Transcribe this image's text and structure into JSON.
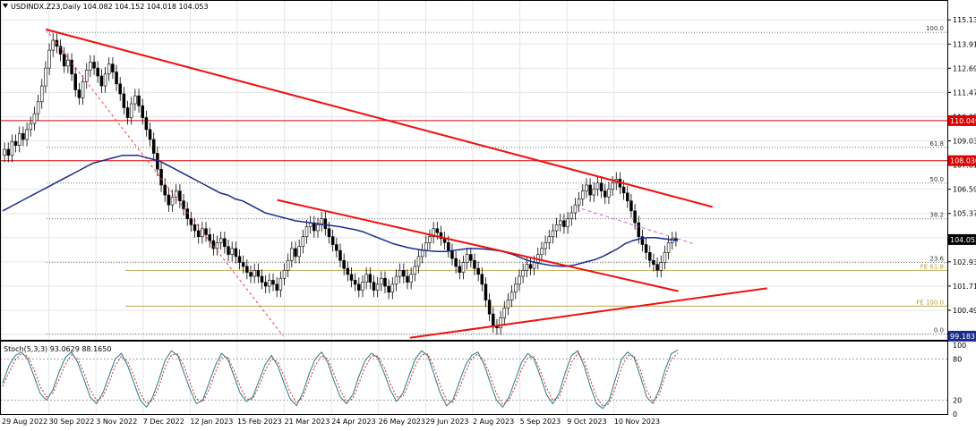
{
  "header": {
    "symbol_text": "USDINDX.Z23,Daily  104.082 104.152 104.018 104.053"
  },
  "chart_data": [
    {
      "type": "line",
      "name": "price",
      "y_ticks": [
        "115.130",
        "113.910",
        "112.690",
        "111.470",
        "110.250",
        "109.030",
        "107.810",
        "106.590",
        "105.370",
        "104.150",
        "102.930",
        "101.710",
        "100.490",
        "99.270"
      ],
      "y_tick_values": [
        115.13,
        113.91,
        112.69,
        111.47,
        110.25,
        109.03,
        107.81,
        106.59,
        105.37,
        104.15,
        102.93,
        101.71,
        100.49,
        99.27
      ],
      "ylim": [
        99.0,
        115.5
      ],
      "x_labels": [
        "29 Aug 2022",
        "30 Sep 2022",
        "3 Nov 2022",
        "7 Dec 2022",
        "12 Jan 2023",
        "15 Feb 2023",
        "21 Mar 2023",
        "24 Apr 2023",
        "26 May 2023",
        "29 Jun 2023",
        "2 Aug 2023",
        "5 Sep 2023",
        "9 Oct 2023",
        "10 Nov 2023"
      ],
      "price_badges": [
        {
          "text": "110.049",
          "value": 110.049,
          "color": "#dd0000"
        },
        {
          "text": "108.030",
          "value": 108.03,
          "color": "#dd0000"
        },
        {
          "text": "104.053",
          "value": 104.053,
          "color": "#000000"
        },
        {
          "text": "99.183",
          "value": 99.183,
          "color": "#1a2c8c"
        }
      ],
      "fib_levels": [
        {
          "label": "100.0",
          "value": 114.5
        },
        {
          "label": "61.8",
          "value": 108.7
        },
        {
          "label": "50.0",
          "value": 106.9
        },
        {
          "label": "38.2",
          "value": 105.1
        },
        {
          "label": "23.6",
          "value": 102.9
        },
        {
          "label": "0.0",
          "value": 99.3
        }
      ],
      "fe_levels": [
        {
          "label": "FE 61.8",
          "value": 102.5
        },
        {
          "label": "FE 100.0",
          "value": 100.7
        }
      ],
      "horizontal_lines": [
        {
          "value": 110.049,
          "color": "#dd0000"
        },
        {
          "value": 108.03,
          "color": "#dd0000"
        }
      ],
      "closes": [
        108.6,
        108.3,
        109.0,
        108.8,
        109.4,
        109.1,
        109.6,
        109.9,
        110.4,
        111.0,
        111.8,
        112.7,
        113.6,
        114.1,
        113.8,
        113.4,
        112.8,
        113.1,
        112.4,
        111.6,
        111.2,
        112.0,
        112.6,
        113.0,
        112.7,
        112.3,
        111.8,
        112.4,
        112.9,
        112.5,
        111.9,
        111.4,
        110.7,
        110.2,
        110.9,
        111.3,
        110.8,
        110.2,
        109.6,
        109.1,
        108.4,
        107.6,
        106.8,
        106.3,
        105.8,
        106.2,
        106.5,
        106.0,
        105.6,
        105.1,
        104.8,
        104.5,
        104.2,
        104.6,
        104.3,
        104.0,
        103.6,
        103.9,
        104.1,
        103.7,
        103.3,
        103.6,
        103.2,
        102.9,
        102.7,
        102.4,
        102.2,
        102.5,
        102.2,
        101.9,
        101.7,
        102.0,
        101.8,
        101.5,
        102.1,
        102.5,
        103.0,
        103.6,
        103.2,
        103.7,
        104.2,
        104.7,
        104.9,
        104.5,
        104.8,
        105.1,
        104.6,
        104.2,
        103.8,
        103.5,
        103.0,
        102.6,
        102.3,
        102.0,
        101.8,
        101.5,
        101.9,
        102.3,
        101.9,
        101.5,
        101.8,
        102.1,
        101.7,
        101.4,
        101.8,
        102.2,
        102.5,
        102.2,
        101.9,
        102.3,
        102.7,
        103.2,
        103.5,
        103.9,
        104.2,
        104.6,
        104.4,
        104.1,
        103.9,
        103.5,
        103.1,
        102.7,
        102.4,
        102.9,
        103.3,
        103.0,
        102.6,
        102.3,
        101.8,
        101.0,
        100.3,
        99.7,
        99.6,
        100.1,
        100.6,
        101.0,
        101.4,
        101.8,
        102.2,
        102.5,
        102.8,
        102.6,
        102.9,
        103.3,
        103.6,
        103.9,
        104.2,
        104.5,
        104.8,
        105.0,
        104.7,
        105.1,
        105.4,
        105.8,
        106.1,
        106.5,
        106.8,
        106.3,
        106.6,
        106.9,
        106.5,
        106.2,
        106.6,
        106.9,
        107.1,
        106.7,
        106.4,
        106.0,
        105.5,
        104.9,
        104.2,
        103.8,
        103.4,
        103.0,
        102.8,
        102.5,
        102.9,
        103.4,
        103.9,
        104.1,
        104.05
      ],
      "ma_y": [
        105.5,
        105.7,
        105.9,
        106.1,
        106.3,
        106.5,
        106.7,
        106.9,
        107.1,
        107.3,
        107.5,
        107.7,
        107.9,
        108.0,
        108.1,
        108.2,
        108.3,
        108.3,
        108.3,
        108.2,
        108.1,
        108.0,
        107.8,
        107.6,
        107.4,
        107.2,
        107.0,
        106.8,
        106.6,
        106.4,
        106.3,
        106.1,
        106.0,
        105.8,
        105.6,
        105.4,
        105.3,
        105.2,
        105.1,
        105.0,
        104.95,
        104.9,
        104.85,
        104.8,
        104.75,
        104.7,
        104.62,
        104.55,
        104.45,
        104.3,
        104.15,
        104.0,
        103.85,
        103.75,
        103.65,
        103.58,
        103.52,
        103.48,
        103.45,
        103.45,
        103.5,
        103.55,
        103.6,
        103.6,
        103.58,
        103.55,
        103.5,
        103.42,
        103.3,
        103.15,
        103.0,
        102.9,
        102.82,
        102.75,
        102.72,
        102.7,
        102.75,
        102.85,
        102.95,
        103.05,
        103.2,
        103.4,
        103.6,
        103.85,
        104.0,
        104.1,
        104.15,
        104.15,
        104.1,
        104.05,
        104.0
      ],
      "trendlines": [
        {
          "x1": 0.047,
          "y1": 114.65,
          "x2": 0.73,
          "y2": 105.7,
          "color": "#ee1111",
          "width": 2
        },
        {
          "x1": 0.284,
          "y1": 106.05,
          "x2": 0.695,
          "y2": 101.45,
          "color": "#ee1111",
          "width": 2
        },
        {
          "x1": 0.42,
          "y1": 99.1,
          "x2": 0.786,
          "y2": 101.6,
          "color": "#ee1111",
          "width": 2
        },
        {
          "x1": 0.047,
          "y1": 114.65,
          "x2": 0.29,
          "y2": 99.2,
          "color": "#ee4444",
          "width": 1,
          "dash": "3,3"
        },
        {
          "x1": 0.59,
          "y1": 105.7,
          "x2": 0.71,
          "y2": 103.85,
          "color": "#cc66cc",
          "width": 1,
          "dash": "4,3"
        }
      ]
    },
    {
      "type": "line",
      "name": "stochastic",
      "label_text": "Stoch(5,3,3) 93.0629 88.1650",
      "y_ticks": [
        "100",
        "80",
        "20",
        "0"
      ],
      "y_tick_values": [
        100,
        80,
        20,
        0
      ],
      "ylim": [
        0,
        100
      ],
      "main": [
        45,
        70,
        85,
        90,
        80,
        55,
        30,
        20,
        35,
        60,
        82,
        90,
        75,
        50,
        25,
        15,
        30,
        55,
        80,
        88,
        70,
        45,
        20,
        10,
        25,
        50,
        78,
        92,
        85,
        60,
        35,
        15,
        20,
        45,
        70,
        88,
        80,
        55,
        30,
        18,
        25,
        48,
        72,
        85,
        70,
        45,
        22,
        12,
        30,
        58,
        80,
        90,
        75,
        48,
        25,
        15,
        28,
        55,
        78,
        88,
        82,
        60,
        35,
        18,
        30,
        55,
        80,
        92,
        85,
        58,
        30,
        12,
        20,
        45,
        70,
        85,
        90,
        72,
        45,
        20,
        10,
        25,
        50,
        75,
        88,
        80,
        55,
        28,
        15,
        30,
        60,
        85,
        92,
        70,
        40,
        15,
        8,
        20,
        50,
        80,
        90,
        82,
        55,
        25,
        15,
        35,
        65,
        88,
        93
      ],
      "signal": [
        40,
        60,
        78,
        88,
        84,
        65,
        40,
        25,
        30,
        50,
        72,
        86,
        80,
        60,
        35,
        20,
        25,
        45,
        70,
        84,
        76,
        55,
        30,
        15,
        20,
        40,
        68,
        86,
        87,
        70,
        45,
        22,
        18,
        35,
        60,
        82,
        83,
        63,
        40,
        22,
        22,
        40,
        63,
        80,
        76,
        55,
        32,
        16,
        24,
        48,
        70,
        85,
        80,
        58,
        35,
        18,
        22,
        45,
        68,
        84,
        84,
        68,
        45,
        25,
        25,
        45,
        70,
        86,
        87,
        68,
        42,
        20,
        17,
        35,
        60,
        80,
        87,
        78,
        55,
        30,
        14,
        20,
        40,
        65,
        82,
        83,
        63,
        38,
        20,
        24,
        48,
        75,
        88,
        78,
        50,
        25,
        11,
        15,
        38,
        68,
        85,
        85,
        64,
        35,
        18,
        28,
        55,
        80,
        88
      ]
    }
  ]
}
